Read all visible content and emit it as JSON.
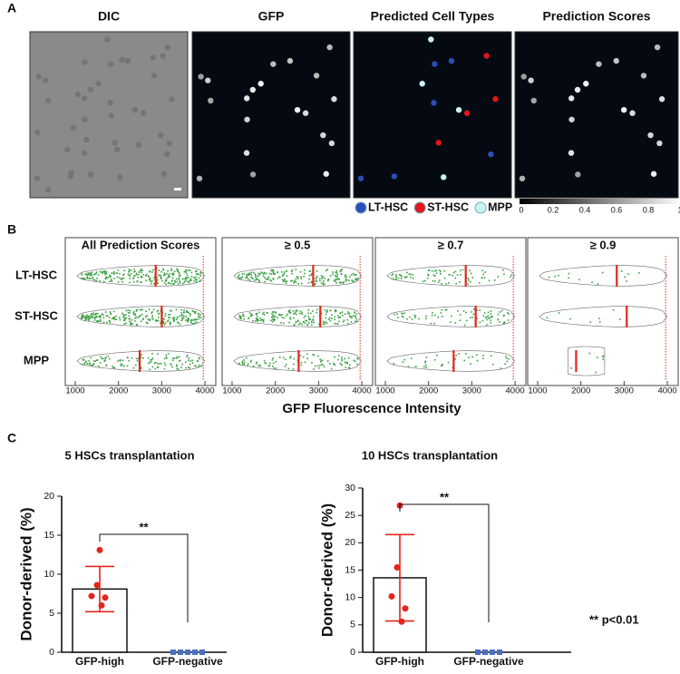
{
  "panel_a": {
    "label": "A",
    "titles": [
      "DIC",
      "GFP",
      "Predicted Cell Types",
      "Prediction Scores"
    ],
    "legend": [
      {
        "name": "LT-HSC",
        "color": "#2a4fb8"
      },
      {
        "name": "ST-HSC",
        "color": "#e3161b"
      },
      {
        "name": "MPP",
        "color": "#c9f3f4"
      }
    ],
    "colorbar_ticks": [
      0,
      0.2,
      0.4,
      0.6,
      0.8,
      1
    ]
  },
  "panel_b": {
    "label": "B",
    "rows": [
      "LT-HSC",
      "ST-HSC",
      "MPP"
    ],
    "xlabel": "GFP Fluorescence Intensity"
  },
  "panel_c": {
    "label": "C",
    "note": "** p<0.01"
  },
  "chart_data": [
    {
      "type": "violin",
      "title": "All Prediction Scores",
      "medians": [
        2860,
        3000,
        2490
      ],
      "reference_line": 3960,
      "xlim": [
        770,
        4250
      ],
      "xticks": [
        1000,
        2000,
        3000,
        4000
      ]
    },
    {
      "type": "violin",
      "title": "≥ 0.5",
      "medians": [
        2875,
        3040,
        2540
      ],
      "reference_line": 3960,
      "xlim": [
        770,
        4250
      ],
      "xticks": [
        1000,
        2000,
        3000,
        4000
      ]
    },
    {
      "type": "violin",
      "title": "≥ 0.7",
      "medians": [
        2860,
        3090,
        2580
      ],
      "reference_line": 3960,
      "xlim": [
        770,
        4250
      ],
      "xticks": [
        1000,
        2000,
        3000,
        4000
      ]
    },
    {
      "type": "violin",
      "title": "≥ 0.9",
      "medians": [
        2830,
        3060,
        1890
      ],
      "reference_line": 3960,
      "xlim": [
        770,
        4250
      ],
      "xticks": [
        1000,
        2000,
        3000,
        4000
      ]
    },
    {
      "type": "bar",
      "title": "5 HSCs transplantation",
      "ylabel": "Donor-derived (%)",
      "categories": [
        "GFP-high",
        "GFP-negative"
      ],
      "values": [
        8.1,
        0
      ],
      "errors": [
        2.9,
        null
      ],
      "points": [
        [
          13.1,
          8.6,
          7.2,
          7.0,
          6.0
        ],
        [
          0,
          0,
          0,
          0,
          0
        ]
      ],
      "point_colors": [
        "#e3261b",
        "#4a6fc0"
      ],
      "significance": "**",
      "ylim": [
        0,
        20
      ],
      "yticks": [
        0,
        5,
        10,
        15,
        20
      ]
    },
    {
      "type": "bar",
      "title": "10 HSCs transplantation",
      "ylabel": "Donor-derived (%)",
      "categories": [
        "GFP-high",
        "GFP-negative"
      ],
      "values": [
        13.6,
        0
      ],
      "errors": [
        7.9,
        null
      ],
      "points": [
        [
          26.8,
          15.5,
          10.2,
          8.0,
          5.6
        ],
        [
          0,
          0,
          0,
          0
        ]
      ],
      "point_colors": [
        "#e3261b",
        "#4a6fc0"
      ],
      "significance": "**",
      "ylim": [
        0,
        30
      ],
      "yticks": [
        0,
        5,
        10,
        15,
        20,
        25,
        30
      ]
    }
  ]
}
